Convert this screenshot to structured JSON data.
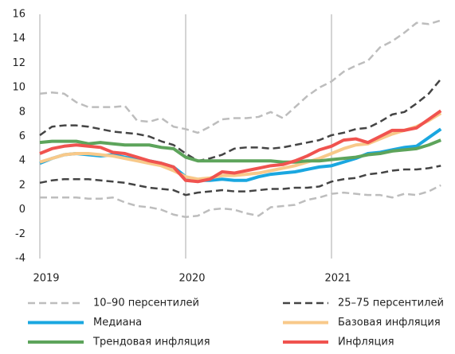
{
  "chart_data": {
    "type": "line",
    "categories": [
      "2019",
      null,
      null,
      null,
      null,
      null,
      null,
      null,
      null,
      null,
      null,
      null,
      "2020",
      null,
      null,
      null,
      null,
      null,
      null,
      null,
      null,
      null,
      null,
      null,
      "2021",
      null,
      null,
      null,
      null,
      null,
      null,
      null,
      null,
      null
    ],
    "ylim": [
      -4,
      16
    ],
    "yticks": [
      -4,
      -2,
      0,
      2,
      4,
      6,
      8,
      10,
      12,
      14,
      16
    ],
    "grid": "x",
    "series": [
      {
        "name": "10–90 персентилей",
        "color": "#bdbdbd",
        "dashed": true,
        "upper": [
          9.5,
          9.6,
          9.5,
          8.8,
          8.4,
          8.4,
          8.4,
          8.5,
          7.3,
          7.2,
          7.5,
          6.8,
          6.6,
          6.3,
          6.8,
          7.4,
          7.5,
          7.5,
          7.6,
          8.0,
          7.5,
          8.4,
          9.3,
          10.0,
          10.5,
          11.3,
          11.8,
          12.2,
          13.3,
          13.8,
          14.5,
          15.3,
          15.2,
          15.5
        ],
        "lower": [
          1.0,
          1.0,
          1.0,
          1.0,
          0.9,
          0.9,
          1.0,
          0.6,
          0.3,
          0.2,
          0.0,
          -0.4,
          -0.6,
          -0.5,
          0.0,
          0.1,
          0.0,
          -0.3,
          -0.5,
          0.2,
          0.3,
          0.4,
          0.8,
          1.0,
          1.3,
          1.4,
          1.3,
          1.2,
          1.2,
          1.0,
          1.3,
          1.2,
          1.5,
          2.0
        ]
      },
      {
        "name": "25–75 персентилей",
        "color": "#444444",
        "dashed": true,
        "upper": [
          6.1,
          6.8,
          6.9,
          6.9,
          6.8,
          6.6,
          6.4,
          6.3,
          6.2,
          6.0,
          5.6,
          5.3,
          4.6,
          4.0,
          4.2,
          4.5,
          5.0,
          5.1,
          5.1,
          5.0,
          5.1,
          5.3,
          5.5,
          5.7,
          6.1,
          6.3,
          6.6,
          6.7,
          7.2,
          7.8,
          8.0,
          8.7,
          9.5,
          10.7
        ],
        "lower": [
          2.2,
          2.4,
          2.5,
          2.5,
          2.5,
          2.4,
          2.3,
          2.2,
          2.0,
          1.8,
          1.7,
          1.6,
          1.2,
          1.4,
          1.5,
          1.6,
          1.5,
          1.5,
          1.6,
          1.7,
          1.7,
          1.8,
          1.8,
          1.9,
          2.3,
          2.5,
          2.6,
          2.9,
          3.0,
          3.2,
          3.3,
          3.3,
          3.4,
          3.6
        ]
      },
      {
        "name": "Медиана",
        "color": "#1aa7e0",
        "values": [
          3.8,
          4.2,
          4.5,
          4.6,
          4.5,
          4.4,
          4.5,
          4.3,
          4.1,
          4.0,
          3.8,
          3.5,
          2.7,
          2.4,
          2.4,
          2.5,
          2.4,
          2.4,
          2.7,
          2.9,
          3.0,
          3.1,
          3.3,
          3.5,
          3.6,
          3.9,
          4.2,
          4.6,
          4.7,
          4.9,
          5.1,
          5.2,
          5.9,
          6.6
        ]
      },
      {
        "name": "Базовая инфляция",
        "color": "#f8c98a",
        "values": [
          3.9,
          4.2,
          4.5,
          4.6,
          4.6,
          4.5,
          4.4,
          4.2,
          4.0,
          3.8,
          3.6,
          3.2,
          2.7,
          2.5,
          2.6,
          2.8,
          2.8,
          2.9,
          3.0,
          3.2,
          3.4,
          3.6,
          3.9,
          4.2,
          4.6,
          5.0,
          5.3,
          5.4,
          5.8,
          6.2,
          6.5,
          6.8,
          7.3,
          7.9
        ]
      },
      {
        "name": "Трендовая инфляция",
        "color": "#5da45b",
        "values": [
          5.5,
          5.6,
          5.6,
          5.6,
          5.4,
          5.5,
          5.4,
          5.3,
          5.3,
          5.3,
          5.1,
          5.0,
          4.3,
          4.0,
          4.0,
          4.0,
          4.0,
          4.0,
          4.0,
          4.0,
          3.9,
          3.9,
          4.0,
          4.0,
          4.1,
          4.2,
          4.3,
          4.5,
          4.6,
          4.8,
          4.9,
          5.0,
          5.3,
          5.7
        ]
      },
      {
        "name": "Инфляция",
        "color": "#f0534f",
        "values": [
          4.6,
          5.0,
          5.2,
          5.3,
          5.2,
          5.1,
          4.7,
          4.6,
          4.3,
          4.0,
          3.8,
          3.5,
          2.4,
          2.3,
          2.5,
          3.1,
          3.0,
          3.2,
          3.4,
          3.6,
          3.7,
          4.0,
          4.4,
          4.9,
          5.2,
          5.7,
          5.8,
          5.5,
          6.0,
          6.5,
          6.5,
          6.7,
          7.4,
          8.1
        ]
      }
    ]
  }
}
